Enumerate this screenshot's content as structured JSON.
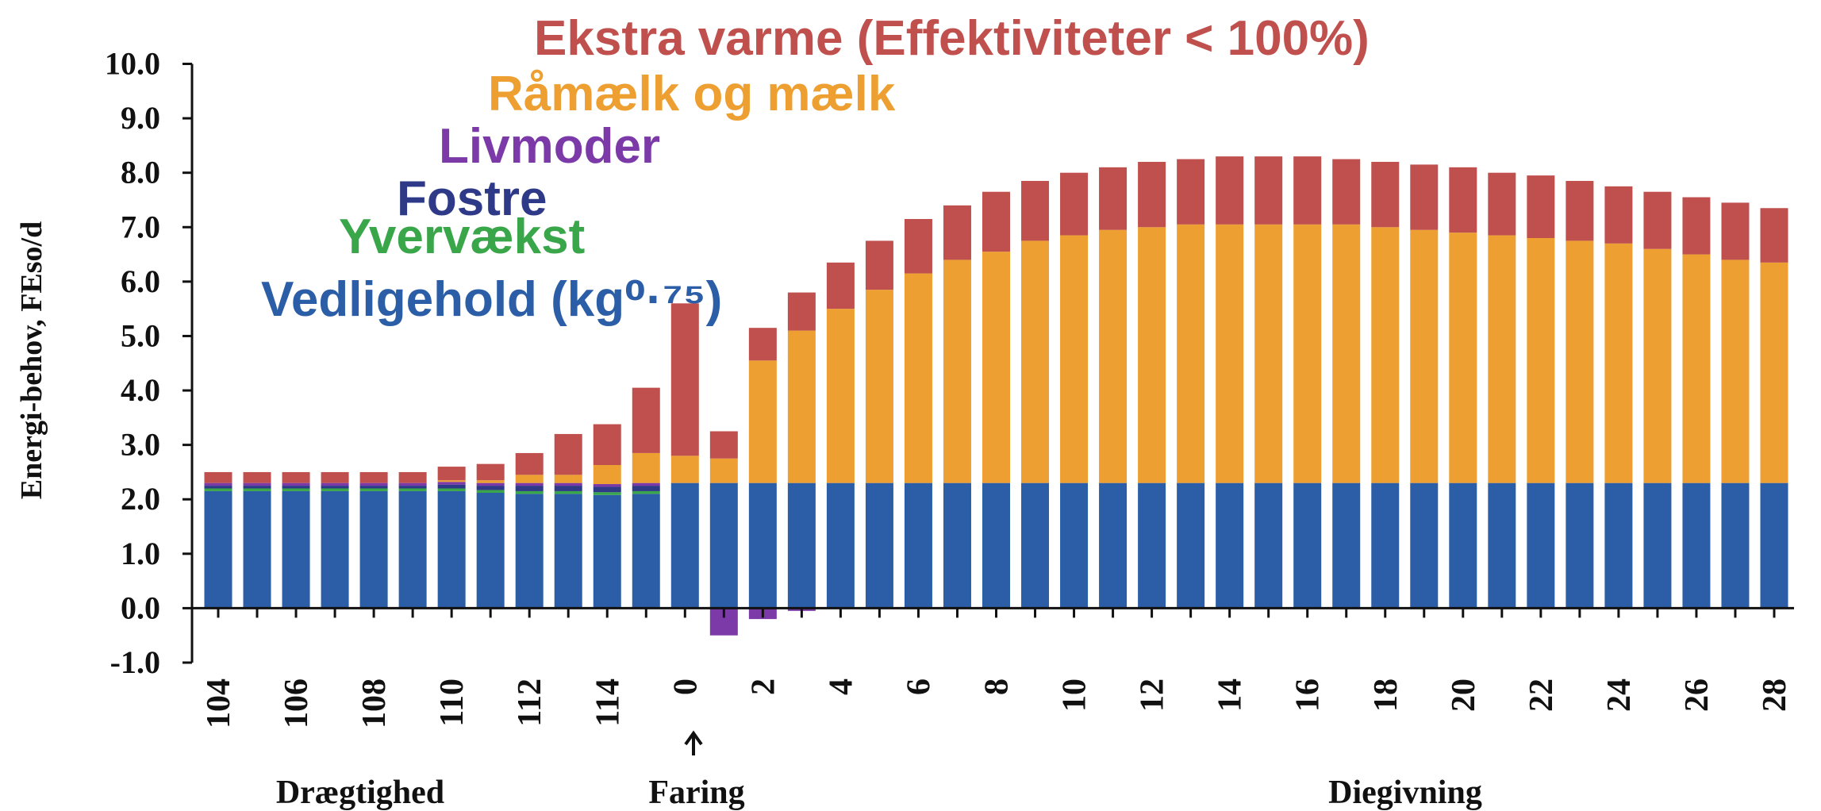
{
  "chart_data": {
    "type": "stacked_bar",
    "ylabel": "Energi-behov, FEso/d",
    "annotations": [
      "Drægtighed",
      "Faring",
      "Diegivning"
    ],
    "categories": [
      "104",
      null,
      "106",
      null,
      "108",
      null,
      "110",
      null,
      "112",
      null,
      "114",
      null,
      "0",
      null,
      "2",
      null,
      "4",
      null,
      "6",
      null,
      "8",
      null,
      "10",
      null,
      "12",
      null,
      "14",
      null,
      "16",
      null,
      "18",
      null,
      "20",
      null,
      "22",
      null,
      "24",
      null,
      "26",
      null,
      "28"
    ],
    "series": [
      {
        "name": "Vedligehold (kg⁰·⁷⁵)",
        "color": "#2b5ea7",
        "values": [
          2.15,
          2.15,
          2.15,
          2.15,
          2.15,
          2.15,
          2.15,
          2.12,
          2.1,
          2.1,
          2.08,
          2.1,
          2.3,
          2.3,
          2.3,
          2.3,
          2.3,
          2.3,
          2.3,
          2.3,
          2.3,
          2.3,
          2.3,
          2.3,
          2.3,
          2.3,
          2.3,
          2.3,
          2.3,
          2.3,
          2.3,
          2.3,
          2.3,
          2.3,
          2.3,
          2.3,
          2.3,
          2.3,
          2.3,
          2.3,
          2.3
        ]
      },
      {
        "name": "Yvervækst",
        "color": "#3aa64a",
        "values": [
          0.05,
          0.05,
          0.05,
          0.05,
          0.05,
          0.05,
          0.05,
          0.05,
          0.05,
          0.05,
          0.05,
          0.05,
          0,
          0,
          0,
          0,
          0,
          0,
          0,
          0,
          0,
          0,
          0,
          0,
          0,
          0,
          0,
          0,
          0,
          0,
          0,
          0,
          0,
          0,
          0,
          0,
          0,
          0,
          0,
          0,
          0
        ]
      },
      {
        "name": "Fostre",
        "color": "#2e3a87",
        "values": [
          0.05,
          0.05,
          0.05,
          0.05,
          0.05,
          0.05,
          0.07,
          0.08,
          0.1,
          0.1,
          0.1,
          0.1,
          0,
          0,
          0,
          0,
          0,
          0,
          0,
          0,
          0,
          0,
          0,
          0,
          0,
          0,
          0,
          0,
          0,
          0,
          0,
          0,
          0,
          0,
          0,
          0,
          0,
          0,
          0,
          0,
          0
        ]
      },
      {
        "name": "Livmoder",
        "color": "#7b3aa8",
        "values": [
          0.05,
          0.05,
          0.05,
          0.05,
          0.05,
          0.05,
          0.05,
          0.05,
          0.05,
          0.05,
          0.05,
          0.05,
          0,
          -0.5,
          -0.2,
          -0.05,
          0,
          0,
          0,
          0,
          0,
          0,
          0,
          0,
          0,
          0,
          0,
          0,
          0,
          0,
          0,
          0,
          0,
          0,
          0,
          0,
          0,
          0,
          0,
          0,
          0
        ]
      },
      {
        "name": "Råmælk og mælk",
        "color": "#eda031",
        "values": [
          0,
          0,
          0,
          0,
          0,
          0,
          0.03,
          0.05,
          0.15,
          0.15,
          0.35,
          0.55,
          0.5,
          0.45,
          2.25,
          2.8,
          3.2,
          3.55,
          3.85,
          4.1,
          4.25,
          4.45,
          4.55,
          4.65,
          4.7,
          4.75,
          4.75,
          4.75,
          4.75,
          4.75,
          4.7,
          4.65,
          4.6,
          4.55,
          4.5,
          4.45,
          4.4,
          4.3,
          4.2,
          4.1,
          4.05
        ]
      },
      {
        "name": "Ekstra varme (Effektiviteter < 100%)",
        "color": "#c0504d",
        "values": [
          0.2,
          0.2,
          0.2,
          0.2,
          0.2,
          0.2,
          0.25,
          0.3,
          0.4,
          0.75,
          0.75,
          1.2,
          2.8,
          0.5,
          0.6,
          0.7,
          0.85,
          0.9,
          1.0,
          1.0,
          1.1,
          1.1,
          1.15,
          1.15,
          1.2,
          1.2,
          1.25,
          1.25,
          1.25,
          1.2,
          1.2,
          1.2,
          1.2,
          1.15,
          1.15,
          1.1,
          1.05,
          1.05,
          1.05,
          1.05,
          1.0
        ]
      }
    ],
    "ylim": [
      -1,
      10
    ],
    "yticks": [
      {
        "value": -1,
        "label": "-1.0"
      },
      {
        "value": 0,
        "label": "0.0"
      },
      {
        "value": 1,
        "label": "1.0"
      },
      {
        "value": 2,
        "label": "2.0"
      },
      {
        "value": 3,
        "label": "3.0"
      },
      {
        "value": 4,
        "label": "4.0"
      },
      {
        "value": 5,
        "label": "5.0"
      },
      {
        "value": 6,
        "label": "6.0"
      },
      {
        "value": 7,
        "label": "7.0"
      },
      {
        "value": 8,
        "label": "8.0"
      },
      {
        "value": 9,
        "label": "9.0"
      },
      {
        "value": 10,
        "label": "10.0"
      }
    ]
  }
}
